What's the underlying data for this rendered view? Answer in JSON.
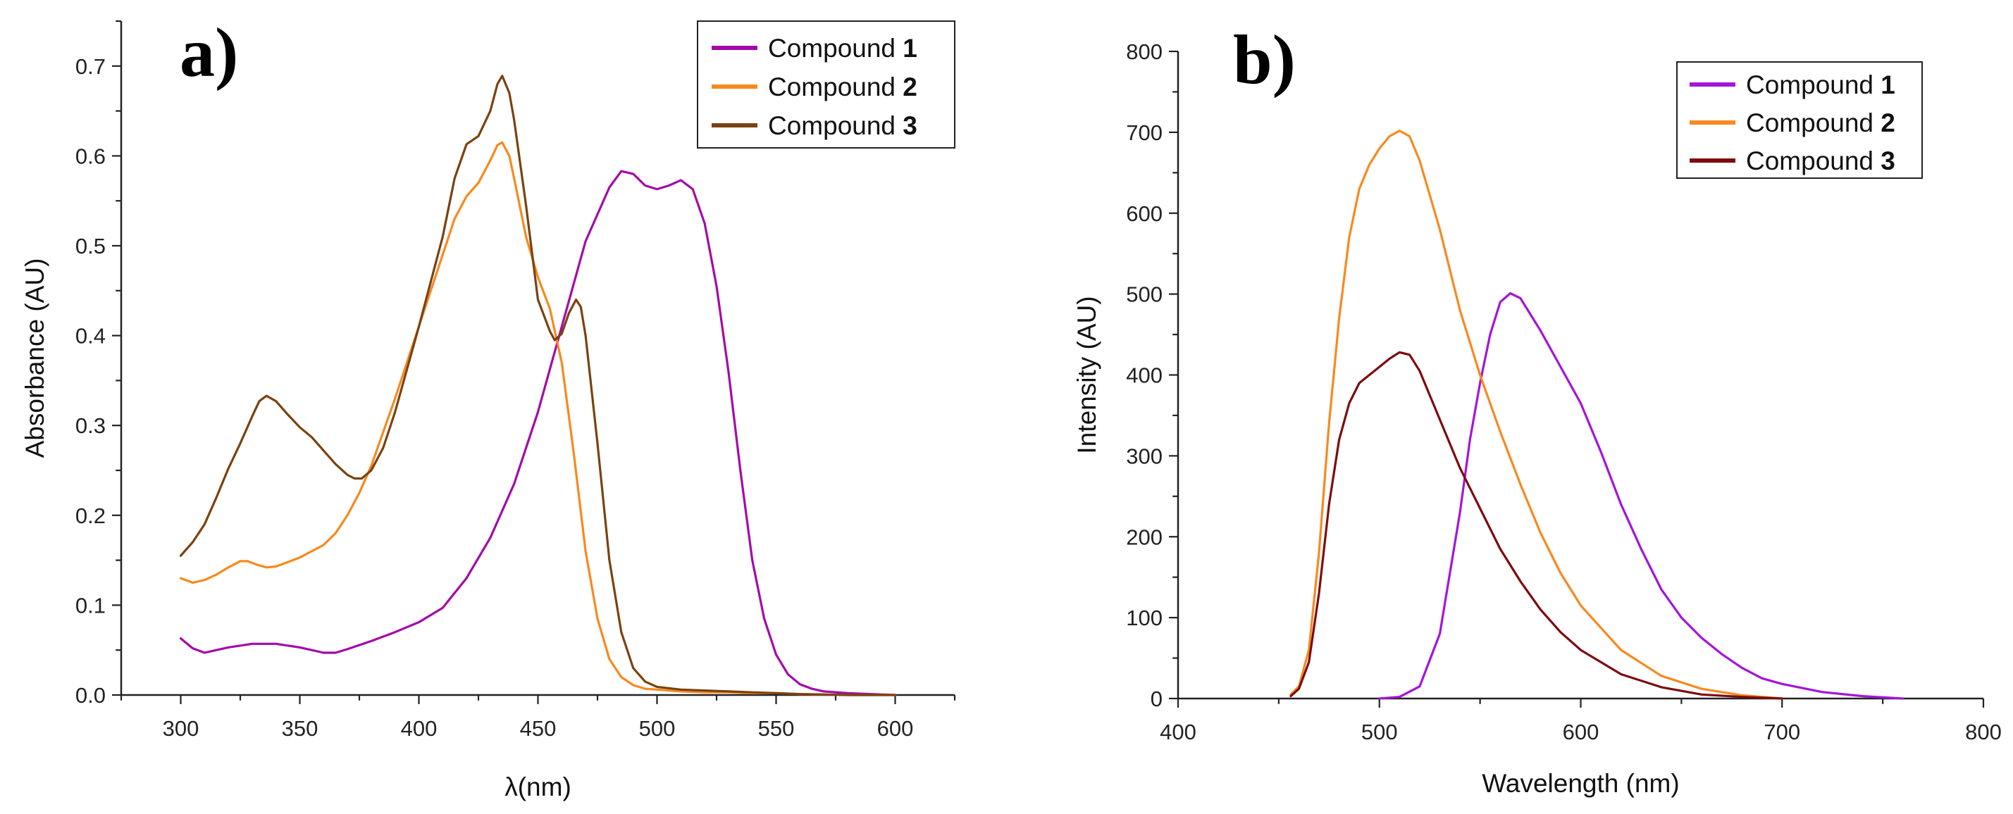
{
  "chart_data": [
    {
      "type": "line",
      "panel_label": "a)",
      "xlabel": "λ(nm)",
      "ylabel": "Absorbance (AU)",
      "xlim": [
        275,
        625
      ],
      "ylim": [
        0,
        0.75
      ],
      "xticks": [
        300,
        350,
        400,
        450,
        500,
        550,
        600
      ],
      "yticks": [
        0.0,
        0.1,
        0.2,
        0.3,
        0.4,
        0.5,
        0.6,
        0.7
      ],
      "ytick_labels": [
        "0.0",
        "0.1",
        "0.2",
        "0.3",
        "0.4",
        "0.5",
        "0.6",
        "0.7"
      ],
      "grid": false,
      "legend_position": "top-right",
      "series": [
        {
          "name": "Compound",
          "name_num": "1",
          "color": "#a30aa8",
          "x": [
            300,
            305,
            310,
            315,
            320,
            330,
            340,
            350,
            355,
            360,
            365,
            370,
            380,
            390,
            400,
            410,
            420,
            430,
            440,
            450,
            460,
            470,
            480,
            485,
            490,
            495,
            500,
            505,
            510,
            515,
            520,
            525,
            530,
            535,
            540,
            545,
            550,
            555,
            560,
            565,
            570,
            580,
            590,
            600
          ],
          "y": [
            0.063,
            0.052,
            0.047,
            0.05,
            0.053,
            0.057,
            0.057,
            0.053,
            0.05,
            0.047,
            0.047,
            0.051,
            0.06,
            0.07,
            0.081,
            0.097,
            0.13,
            0.175,
            0.235,
            0.315,
            0.41,
            0.505,
            0.565,
            0.583,
            0.58,
            0.567,
            0.563,
            0.567,
            0.573,
            0.563,
            0.525,
            0.455,
            0.36,
            0.25,
            0.15,
            0.085,
            0.045,
            0.023,
            0.012,
            0.007,
            0.004,
            0.002,
            0.001,
            0.0
          ]
        },
        {
          "name": "Compound",
          "name_num": "2",
          "color": "#f7891f",
          "x": [
            300,
            305,
            310,
            315,
            320,
            325,
            328,
            332,
            336,
            340,
            345,
            350,
            355,
            360,
            365,
            370,
            375,
            380,
            390,
            400,
            410,
            415,
            420,
            425,
            430,
            433,
            435,
            438,
            440,
            445,
            450,
            455,
            460,
            465,
            470,
            475,
            480,
            485,
            490,
            495,
            500,
            510,
            520,
            530,
            540,
            550,
            560,
            580,
            600
          ],
          "y": [
            0.13,
            0.125,
            0.128,
            0.134,
            0.142,
            0.149,
            0.149,
            0.145,
            0.142,
            0.143,
            0.148,
            0.153,
            0.16,
            0.167,
            0.18,
            0.2,
            0.225,
            0.255,
            0.33,
            0.41,
            0.49,
            0.53,
            0.555,
            0.57,
            0.595,
            0.612,
            0.615,
            0.6,
            0.575,
            0.51,
            0.465,
            0.43,
            0.37,
            0.27,
            0.16,
            0.085,
            0.04,
            0.02,
            0.011,
            0.007,
            0.006,
            0.004,
            0.003,
            0.003,
            0.002,
            0.002,
            0.001,
            0.0,
            0.0
          ]
        },
        {
          "name": "Compound",
          "name_num": "3",
          "color": "#7a4210",
          "x": [
            300,
            305,
            310,
            315,
            320,
            325,
            330,
            333,
            336,
            340,
            345,
            350,
            355,
            360,
            365,
            370,
            373,
            376,
            380,
            385,
            390,
            400,
            410,
            415,
            420,
            425,
            430,
            433,
            435,
            438,
            440,
            445,
            450,
            455,
            457,
            460,
            463,
            466,
            468,
            470,
            475,
            480,
            485,
            490,
            495,
            500,
            510,
            520,
            530,
            540,
            550,
            560,
            580,
            600
          ],
          "y": [
            0.155,
            0.17,
            0.19,
            0.22,
            0.252,
            0.28,
            0.31,
            0.327,
            0.333,
            0.327,
            0.312,
            0.298,
            0.287,
            0.272,
            0.257,
            0.245,
            0.241,
            0.241,
            0.25,
            0.275,
            0.315,
            0.41,
            0.51,
            0.575,
            0.613,
            0.622,
            0.65,
            0.68,
            0.689,
            0.67,
            0.64,
            0.545,
            0.44,
            0.405,
            0.395,
            0.402,
            0.425,
            0.44,
            0.432,
            0.4,
            0.28,
            0.15,
            0.07,
            0.03,
            0.015,
            0.009,
            0.006,
            0.005,
            0.004,
            0.003,
            0.002,
            0.001,
            0.0,
            0.0
          ]
        }
      ]
    },
    {
      "type": "line",
      "panel_label": "b)",
      "xlabel": "Wavelength (nm)",
      "ylabel": "Intensity (AU)",
      "xlim": [
        400,
        800
      ],
      "ylim": [
        0,
        800
      ],
      "xticks": [
        400,
        500,
        600,
        700,
        800
      ],
      "yticks": [
        0,
        100,
        200,
        300,
        400,
        500,
        600,
        700,
        800
      ],
      "ytick_labels": [
        "0",
        "100",
        "200",
        "300",
        "400",
        "500",
        "600",
        "700",
        "800"
      ],
      "grid": false,
      "legend_position": "top-right",
      "series": [
        {
          "name": "Compound",
          "name_num": "1",
          "color": "#a514d8",
          "x": [
            500,
            510,
            520,
            530,
            540,
            545,
            550,
            555,
            560,
            565,
            570,
            580,
            590,
            600,
            610,
            620,
            630,
            640,
            650,
            660,
            670,
            680,
            690,
            700,
            720,
            740,
            760
          ],
          "y": [
            0,
            2,
            15,
            80,
            230,
            320,
            390,
            450,
            490,
            501,
            495,
            455,
            410,
            365,
            305,
            240,
            185,
            135,
            100,
            75,
            55,
            38,
            25,
            18,
            8,
            3,
            0
          ],
          "color_name": "purple"
        },
        {
          "name": "Compound",
          "name_num": "2",
          "color": "#f7891f",
          "x": [
            456,
            460,
            465,
            470,
            475,
            480,
            485,
            490,
            495,
            500,
            505,
            510,
            515,
            520,
            530,
            540,
            550,
            560,
            570,
            580,
            590,
            600,
            620,
            640,
            660,
            680,
            700
          ],
          "y": [
            5,
            15,
            60,
            180,
            340,
            470,
            570,
            630,
            660,
            680,
            695,
            702,
            695,
            665,
            580,
            480,
            400,
            330,
            265,
            205,
            155,
            115,
            60,
            28,
            12,
            4,
            0
          ]
        },
        {
          "name": "Compound",
          "name_num": "3",
          "color": "#7d0a0f",
          "x": [
            456,
            460,
            465,
            470,
            475,
            480,
            485,
            490,
            495,
            500,
            505,
            510,
            515,
            520,
            530,
            540,
            550,
            560,
            570,
            580,
            590,
            600,
            620,
            640,
            660,
            680,
            700
          ],
          "y": [
            3,
            12,
            45,
            130,
            240,
            320,
            365,
            390,
            400,
            410,
            420,
            428,
            425,
            405,
            345,
            285,
            235,
            185,
            145,
            110,
            82,
            60,
            30,
            14,
            5,
            2,
            0
          ]
        }
      ]
    }
  ]
}
